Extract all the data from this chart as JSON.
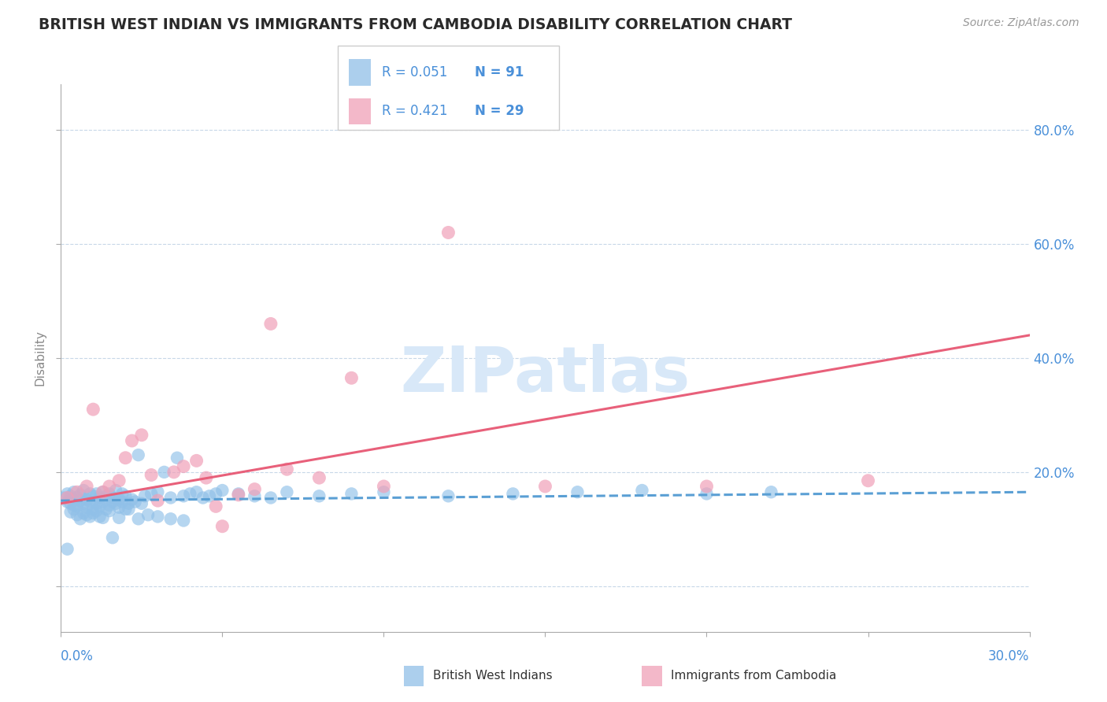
{
  "title": "BRITISH WEST INDIAN VS IMMIGRANTS FROM CAMBODIA DISABILITY CORRELATION CHART",
  "source": "Source: ZipAtlas.com",
  "ylabel": "Disability",
  "axis_label_color": "#4a90d9",
  "title_color": "#2a2a2a",
  "grid_color": "#c8d8e8",
  "blue_color": "#90c0e8",
  "pink_color": "#f0a0b8",
  "blue_line_color": "#5a9fd4",
  "pink_line_color": "#e8607a",
  "watermark_color": "#d8e8f8",
  "x_min": 0.0,
  "x_max": 0.3,
  "y_min": -0.08,
  "y_max": 0.88,
  "y_ticks": [
    0.0,
    0.2,
    0.4,
    0.6,
    0.8
  ],
  "y_tick_labels": [
    "",
    "20.0%",
    "40.0%",
    "60.0%",
    "80.0%"
  ],
  "x_ticks": [
    0.0,
    0.05,
    0.1,
    0.15,
    0.2,
    0.25,
    0.3
  ],
  "blue_scatter_x": [
    0.001,
    0.002,
    0.002,
    0.003,
    0.003,
    0.004,
    0.004,
    0.005,
    0.005,
    0.006,
    0.006,
    0.007,
    0.007,
    0.008,
    0.008,
    0.009,
    0.009,
    0.01,
    0.01,
    0.011,
    0.011,
    0.012,
    0.012,
    0.013,
    0.013,
    0.014,
    0.014,
    0.015,
    0.015,
    0.016,
    0.016,
    0.017,
    0.017,
    0.018,
    0.018,
    0.019,
    0.019,
    0.02,
    0.02,
    0.021,
    0.022,
    0.023,
    0.024,
    0.025,
    0.026,
    0.028,
    0.03,
    0.032,
    0.034,
    0.036,
    0.038,
    0.04,
    0.042,
    0.044,
    0.046,
    0.048,
    0.05,
    0.055,
    0.06,
    0.065,
    0.07,
    0.08,
    0.09,
    0.1,
    0.12,
    0.14,
    0.16,
    0.18,
    0.2,
    0.22,
    0.003,
    0.005,
    0.007,
    0.009,
    0.011,
    0.013,
    0.004,
    0.006,
    0.008,
    0.01,
    0.012,
    0.015,
    0.018,
    0.021,
    0.024,
    0.027,
    0.03,
    0.034,
    0.038,
    0.002,
    0.016
  ],
  "blue_scatter_y": [
    0.155,
    0.148,
    0.162,
    0.145,
    0.158,
    0.142,
    0.165,
    0.14,
    0.155,
    0.15,
    0.16,
    0.145,
    0.168,
    0.138,
    0.152,
    0.148,
    0.162,
    0.135,
    0.158,
    0.145,
    0.162,
    0.14,
    0.155,
    0.148,
    0.165,
    0.135,
    0.158,
    0.142,
    0.162,
    0.148,
    0.155,
    0.145,
    0.168,
    0.138,
    0.152,
    0.148,
    0.162,
    0.135,
    0.158,
    0.145,
    0.152,
    0.148,
    0.23,
    0.145,
    0.158,
    0.162,
    0.165,
    0.2,
    0.155,
    0.225,
    0.158,
    0.162,
    0.165,
    0.155,
    0.158,
    0.162,
    0.168,
    0.162,
    0.158,
    0.155,
    0.165,
    0.158,
    0.162,
    0.165,
    0.158,
    0.162,
    0.165,
    0.168,
    0.162,
    0.165,
    0.13,
    0.125,
    0.128,
    0.122,
    0.132,
    0.12,
    0.135,
    0.118,
    0.125,
    0.128,
    0.122,
    0.132,
    0.12,
    0.135,
    0.118,
    0.125,
    0.122,
    0.118,
    0.115,
    0.065,
    0.085
  ],
  "pink_scatter_x": [
    0.002,
    0.005,
    0.008,
    0.01,
    0.013,
    0.015,
    0.018,
    0.02,
    0.022,
    0.025,
    0.028,
    0.03,
    0.035,
    0.038,
    0.042,
    0.045,
    0.048,
    0.05,
    0.055,
    0.06,
    0.065,
    0.07,
    0.08,
    0.09,
    0.1,
    0.12,
    0.15,
    0.2,
    0.25
  ],
  "pink_scatter_y": [
    0.155,
    0.165,
    0.175,
    0.31,
    0.165,
    0.175,
    0.185,
    0.225,
    0.255,
    0.265,
    0.195,
    0.15,
    0.2,
    0.21,
    0.22,
    0.19,
    0.14,
    0.105,
    0.16,
    0.17,
    0.46,
    0.205,
    0.19,
    0.365,
    0.175,
    0.62,
    0.175,
    0.175,
    0.185
  ],
  "blue_trend_x": [
    0.0,
    0.3
  ],
  "blue_trend_y": [
    0.15,
    0.165
  ],
  "pink_trend_x": [
    0.0,
    0.3
  ],
  "pink_trend_y": [
    0.145,
    0.44
  ],
  "legend_r1": "R = 0.051",
  "legend_n1": "N = 91",
  "legend_r2": "R = 0.421",
  "legend_n2": "N = 29"
}
